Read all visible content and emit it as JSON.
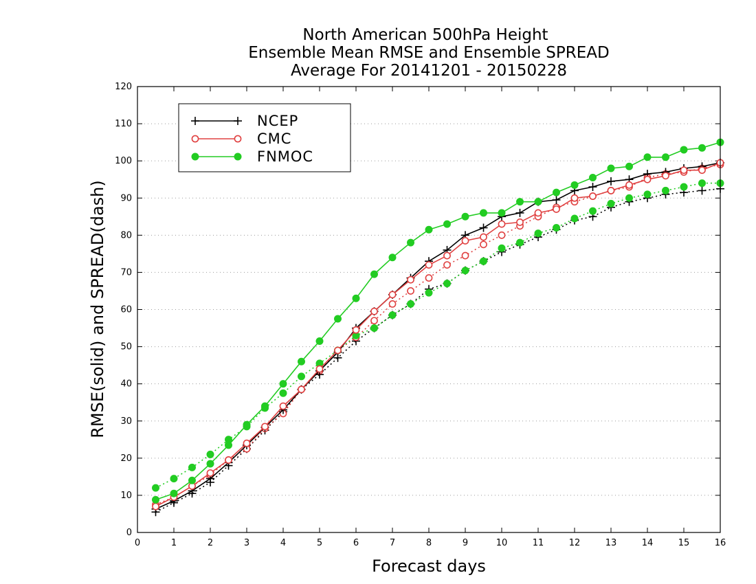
{
  "chart_data": {
    "type": "line",
    "title": [
      "North American 500hPa Height",
      "Ensemble Mean RMSE and Ensemble SPREAD",
      "Average For 20141201 - 20150228"
    ],
    "xlabel": "Forecast days",
    "ylabel": "RMSE(solid) and SPREAD(dash)",
    "xlim": [
      0,
      16
    ],
    "ylim": [
      0,
      120
    ],
    "xticks": [
      0,
      1,
      2,
      3,
      4,
      5,
      6,
      7,
      8,
      9,
      10,
      11,
      12,
      13,
      14,
      15,
      16
    ],
    "yticks": [
      0,
      10,
      20,
      30,
      40,
      50,
      60,
      70,
      80,
      90,
      100,
      110,
      120
    ],
    "grid": "horizontal dotted",
    "legend_position": "top-left",
    "x": [
      0.5,
      1,
      1.5,
      2,
      2.5,
      3,
      3.5,
      4,
      4.5,
      5,
      5.5,
      6,
      6.5,
      7,
      7.5,
      8,
      8.5,
      9,
      9.5,
      10,
      10.5,
      11,
      11.5,
      12,
      12.5,
      13,
      13.5,
      14,
      14.5,
      15,
      15.5,
      16
    ],
    "series": [
      {
        "name": "NCEP",
        "metric": "RMSE",
        "style": "solid",
        "marker": "plus",
        "color": "#000000",
        "values": [
          6.3,
          8.5,
          11.2,
          14.5,
          18.8,
          23.5,
          28.3,
          33.0,
          38.5,
          43.5,
          48.5,
          55.0,
          59.5,
          64.0,
          68.5,
          73.0,
          76.0,
          80.0,
          82.0,
          85.0,
          86.0,
          89.0,
          89.5,
          92.0,
          93.0,
          94.5,
          95.0,
          96.5,
          97.0,
          98.0,
          98.5,
          99.5
        ]
      },
      {
        "name": "NCEP",
        "metric": "SPREAD",
        "style": "dash",
        "marker": "plus",
        "color": "#000000",
        "values": [
          5.5,
          8.0,
          10.5,
          13.5,
          18.0,
          22.5,
          27.5,
          32.5,
          38.5,
          42.5,
          47.0,
          51.5,
          55.0,
          58.5,
          61.5,
          65.5,
          67.0,
          70.5,
          73.0,
          75.5,
          77.5,
          79.5,
          81.5,
          84.0,
          85.0,
          87.5,
          89.0,
          90.0,
          91.0,
          91.5,
          92.0,
          92.5
        ]
      },
      {
        "name": "CMC",
        "metric": "RMSE",
        "style": "solid",
        "marker": "open-circle",
        "color": "#e04040",
        "values": [
          7.0,
          9.5,
          12.5,
          16.0,
          19.5,
          24.0,
          28.5,
          34.0,
          38.5,
          44.0,
          49.0,
          54.5,
          59.5,
          64.0,
          68.0,
          72.0,
          74.5,
          78.5,
          79.5,
          83.0,
          83.5,
          86.0,
          87.0,
          90.0,
          90.5,
          92.0,
          93.5,
          95.0,
          96.0,
          97.5,
          97.5,
          99.5
        ]
      },
      {
        "name": "CMC",
        "metric": "SPREAD",
        "style": "dash",
        "marker": "open-circle",
        "color": "#e04040",
        "values": [
          7.5,
          9.5,
          12.5,
          15.5,
          19.5,
          22.5,
          28.0,
          32.0,
          38.5,
          43.5,
          49.0,
          52.5,
          57.0,
          61.5,
          65.0,
          68.5,
          72.0,
          74.5,
          77.5,
          80.0,
          82.5,
          85.0,
          87.5,
          89.0,
          90.5,
          92.0,
          93.0,
          95.5,
          96.5,
          97.0,
          98.0,
          99.0
        ]
      },
      {
        "name": "FNMOC",
        "metric": "RMSE",
        "style": "solid",
        "marker": "filled-circle",
        "color": "#22cc22",
        "values": [
          8.8,
          10.5,
          14.0,
          18.5,
          23.5,
          29.0,
          34.0,
          40.0,
          46.0,
          51.5,
          57.5,
          63.0,
          69.5,
          74.0,
          78.0,
          81.5,
          83.0,
          85.0,
          86.0,
          86.0,
          89.0,
          89.0,
          91.5,
          93.5,
          95.5,
          98.0,
          98.5,
          101.0,
          101.0,
          103.0,
          103.5,
          105.0
        ]
      },
      {
        "name": "FNMOC",
        "metric": "SPREAD",
        "style": "dash",
        "marker": "filled-circle",
        "color": "#22cc22",
        "values": [
          12.0,
          14.5,
          17.5,
          21.0,
          25.0,
          28.5,
          33.5,
          37.5,
          42.0,
          45.5,
          49.0,
          53.0,
          55.0,
          58.5,
          61.5,
          64.5,
          67.0,
          70.5,
          73.0,
          76.5,
          78.0,
          80.5,
          82.0,
          84.5,
          86.5,
          88.5,
          90.0,
          91.0,
          92.0,
          93.0,
          94.0,
          94.0
        ]
      }
    ],
    "legend": [
      {
        "name": "NCEP",
        "color": "#000000",
        "marker": "plus"
      },
      {
        "name": "CMC",
        "color": "#e04040",
        "marker": "open-circle"
      },
      {
        "name": "FNMOC",
        "color": "#22cc22",
        "marker": "filled-circle"
      }
    ]
  }
}
